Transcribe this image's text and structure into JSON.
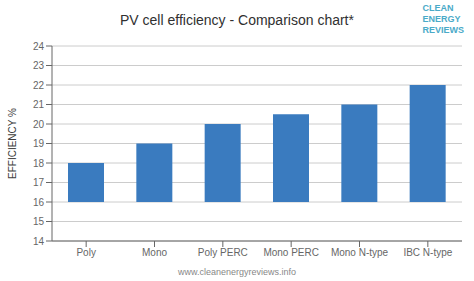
{
  "chart_data": {
    "type": "bar",
    "title": "PV cell efficiency - Comparison chart*",
    "ylabel": "EFFICIENCY %",
    "footer": "www.cleanenergyreviews.info",
    "annotations": [
      "CLEAN",
      "ENERGY",
      "REVIEWS"
    ],
    "categories": [
      "Poly",
      "Mono",
      "Poly PERC",
      "Mono PERC",
      "Mono N-type",
      "IBC N-type"
    ],
    "values": [
      18.0,
      19.0,
      20.0,
      20.5,
      21.0,
      22.0
    ],
    "bar_bottom": 16.0,
    "ylim": [
      14,
      24
    ],
    "yticks": [
      14,
      15,
      16,
      17,
      18,
      19,
      20,
      21,
      22,
      23,
      24
    ],
    "grid": true,
    "color": "#3a7bbf"
  }
}
